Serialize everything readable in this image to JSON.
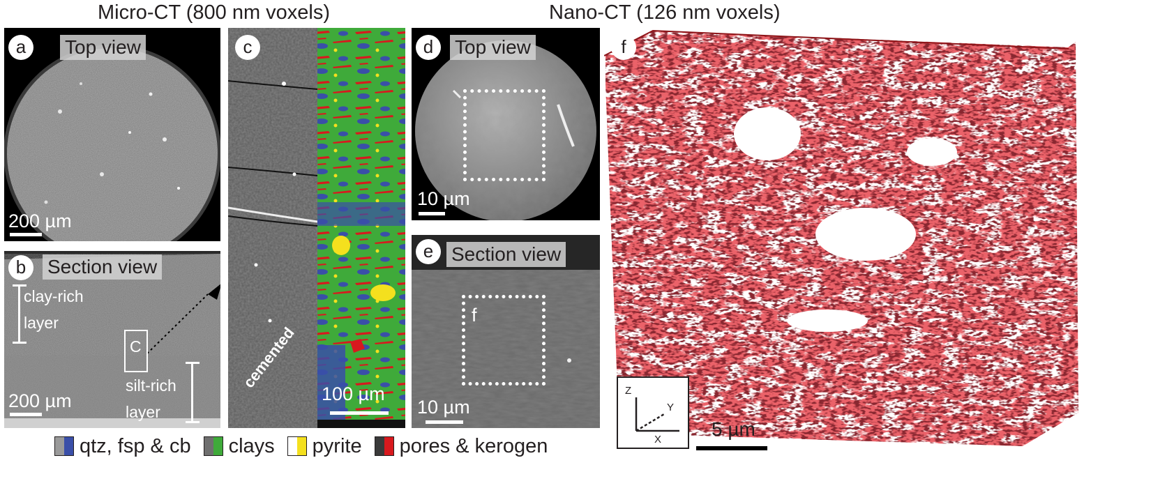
{
  "headers": {
    "micro_ct": "Micro-CT (800 nm voxels)",
    "nano_ct": "Nano-CT (126 nm voxels)"
  },
  "panel_a": {
    "letter": "a",
    "view_label": "Top view",
    "scale": "200 µm"
  },
  "panel_b": {
    "letter": "b",
    "view_label": "Section view",
    "scale": "200 µm",
    "clay_rich": [
      "clay-rich",
      "layer"
    ],
    "silt_rich": [
      "silt-rich",
      "layer"
    ],
    "inset_label": "C"
  },
  "panel_c": {
    "letter": "c",
    "annotation": "cemented",
    "scale": "100 µm"
  },
  "panel_d": {
    "letter": "d",
    "view_label": "Top view",
    "scale": "10 µm"
  },
  "panel_e": {
    "letter": "e",
    "view_label": "Section view",
    "scale": "10 µm",
    "inset_label": "f"
  },
  "panel_f": {
    "letter": "f",
    "scale": "5 µm",
    "axes": {
      "z": "Z",
      "y": "Y",
      "x": "X"
    }
  },
  "legend": [
    {
      "label": "qtz, fsp & cb",
      "colors": [
        "#9a9a9a",
        "#3a4fa8"
      ]
    },
    {
      "label": "clays",
      "colors": [
        "#6f6f6f",
        "#3faa3a"
      ]
    },
    {
      "label": "pyrite",
      "colors": [
        "#ffffff",
        "#f4e01e"
      ]
    },
    {
      "label": "pores & kerogen",
      "colors": [
        "#3a3a3a",
        "#d8191e"
      ]
    }
  ],
  "colors": {
    "qtz": "#3a4fa8",
    "clay": "#3faa3a",
    "pyrite": "#f4e01e",
    "pore": "#d8191e",
    "render_red": "#d41f23"
  }
}
